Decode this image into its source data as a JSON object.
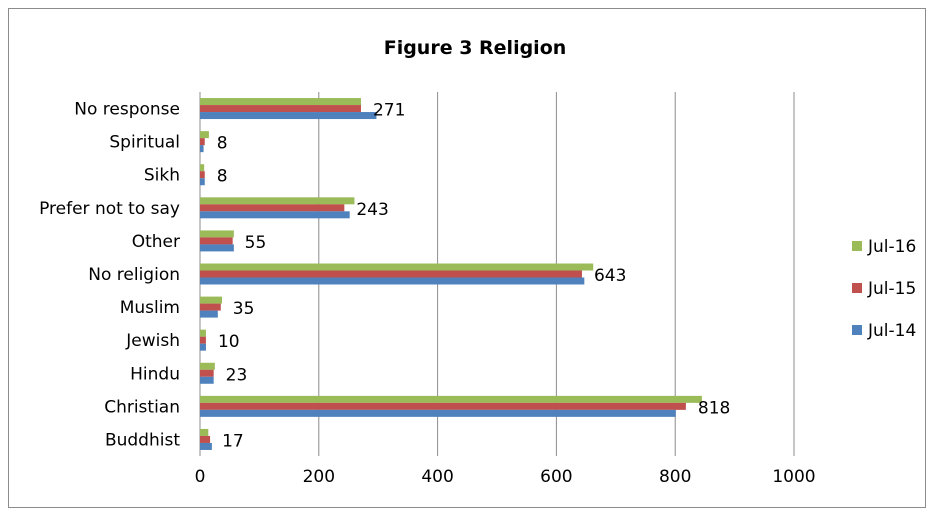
{
  "chart_data": {
    "type": "bar",
    "orientation": "horizontal",
    "title": "Figure 3  Religion",
    "categories": [
      "No response",
      "Spiritual",
      "Sikh",
      "Prefer not to say",
      "Other",
      "No religion",
      "Muslim",
      "Jewish",
      "Hindu",
      "Christian",
      "Buddhist"
    ],
    "series": [
      {
        "name": "Jul-16",
        "color": "#9bbb59",
        "values": [
          271,
          15,
          7,
          260,
          57,
          662,
          37,
          10,
          25,
          845,
          14
        ]
      },
      {
        "name": "Jul-15",
        "color": "#c0504d",
        "values": [
          271,
          8,
          8,
          243,
          55,
          643,
          35,
          10,
          23,
          818,
          17
        ]
      },
      {
        "name": "Jul-14",
        "color": "#4f81bd",
        "values": [
          297,
          6,
          8,
          252,
          57,
          647,
          30,
          10,
          23,
          801,
          20
        ]
      }
    ],
    "data_labels": [
      "271",
      "8",
      "8",
      "243",
      "55",
      "643",
      "35",
      "10",
      "23",
      "818",
      "17"
    ],
    "xlim": [
      0,
      1000
    ],
    "xticks": [
      "0",
      "200",
      "400",
      "600",
      "800",
      "1000"
    ],
    "grid": true,
    "legend_position": "right"
  }
}
